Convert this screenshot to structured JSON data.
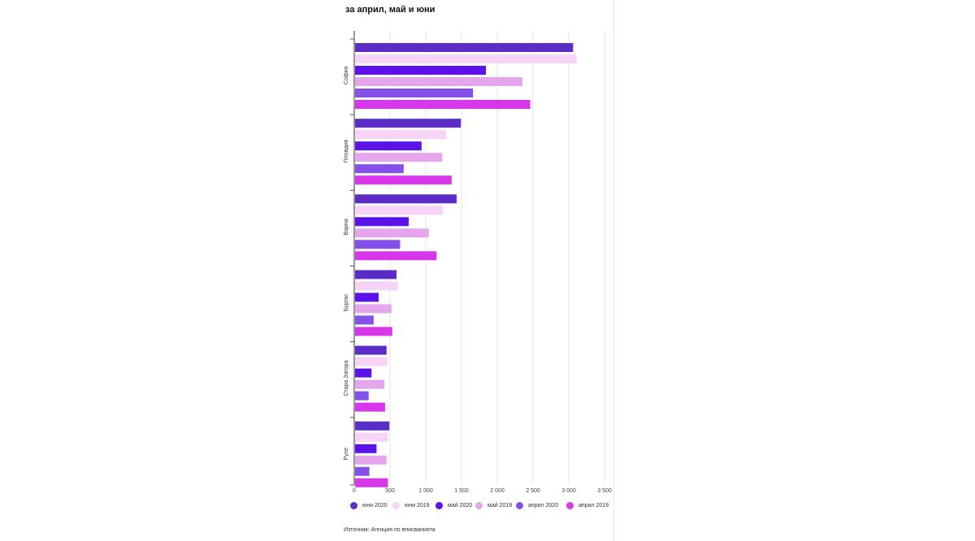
{
  "chart_data": {
    "type": "bar",
    "orientation": "horizontal",
    "title": "за април, май и юни",
    "categories": [
      "София",
      "Пловдив",
      "Варна",
      "Бургас",
      "Стара Загора",
      "Русе"
    ],
    "series": [
      {
        "name": "юни 2020",
        "color": "#5b2cc6",
        "values": [
          3050,
          1480,
          1420,
          580,
          440,
          480
        ]
      },
      {
        "name": "юни 2019",
        "color": "#f7d4f7",
        "values": [
          3100,
          1270,
          1230,
          600,
          450,
          460
        ]
      },
      {
        "name": "май 2020",
        "color": "#5a12e8",
        "values": [
          1830,
          930,
          750,
          330,
          230,
          300
        ]
      },
      {
        "name": "май 2019",
        "color": "#e6a6ee",
        "values": [
          2340,
          1220,
          1030,
          510,
          410,
          440
        ]
      },
      {
        "name": "април 2020",
        "color": "#8451e8",
        "values": [
          1650,
          680,
          630,
          260,
          190,
          200
        ]
      },
      {
        "name": "април 2019",
        "color": "#d736ea",
        "values": [
          2450,
          1350,
          1140,
          520,
          420,
          460
        ]
      }
    ],
    "x_ticks": [
      "0",
      "500",
      "1 000",
      "1 500",
      "2 000",
      "2 500",
      "3 000",
      "3 500"
    ],
    "xlim": [
      0,
      3500
    ],
    "grid": true,
    "legend_position": "bottom"
  },
  "source": "Източник: Агенция по вписванията"
}
